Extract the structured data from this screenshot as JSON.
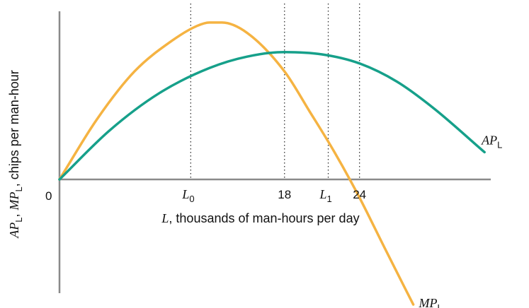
{
  "chart_data": {
    "type": "line",
    "title": "",
    "xlabel": {
      "var": "L",
      "rest": ", thousands of man-hours per day"
    },
    "ylabel": {
      "ap": "AP",
      "mp": "MP",
      "sub": "L",
      "rest": ", chips per man-hour"
    },
    "origin_label": "0",
    "x_ticks": [
      {
        "value": 18,
        "text": "18"
      },
      {
        "value": 24,
        "text": "24"
      }
    ],
    "x_markers": [
      {
        "value": 10.5,
        "var": "L",
        "sub": "0"
      },
      {
        "value": 21.5,
        "var": "L",
        "sub": "1"
      }
    ],
    "guides": [
      10.5,
      18,
      21.5,
      24
    ],
    "xlim": [
      0,
      34.5
    ],
    "ylim": [
      -10,
      14.6
    ],
    "series": [
      {
        "name": "MP",
        "sub": "L",
        "color": "#f5b342",
        "points": [
          [
            0,
            0
          ],
          [
            3,
            5.3
          ],
          [
            6,
            9.5
          ],
          [
            9,
            12.2
          ],
          [
            11,
            13.5
          ],
          [
            12,
            13.8
          ],
          [
            13,
            13.8
          ],
          [
            15,
            12.9
          ],
          [
            18,
            9.5
          ],
          [
            20,
            6
          ],
          [
            22,
            2.4
          ],
          [
            24,
            -1.6
          ],
          [
            26,
            -6
          ],
          [
            28.3,
            -11
          ]
        ]
      },
      {
        "name": "AP",
        "sub": "L",
        "color": "#16a08a",
        "points": [
          [
            0,
            0
          ],
          [
            4,
            4.3
          ],
          [
            8,
            7.6
          ],
          [
            12,
            9.8
          ],
          [
            15,
            10.8
          ],
          [
            18,
            11.2
          ],
          [
            21,
            11
          ],
          [
            24,
            10.2
          ],
          [
            27,
            8.6
          ],
          [
            30,
            6.2
          ],
          [
            34,
            2.4
          ]
        ]
      }
    ]
  }
}
